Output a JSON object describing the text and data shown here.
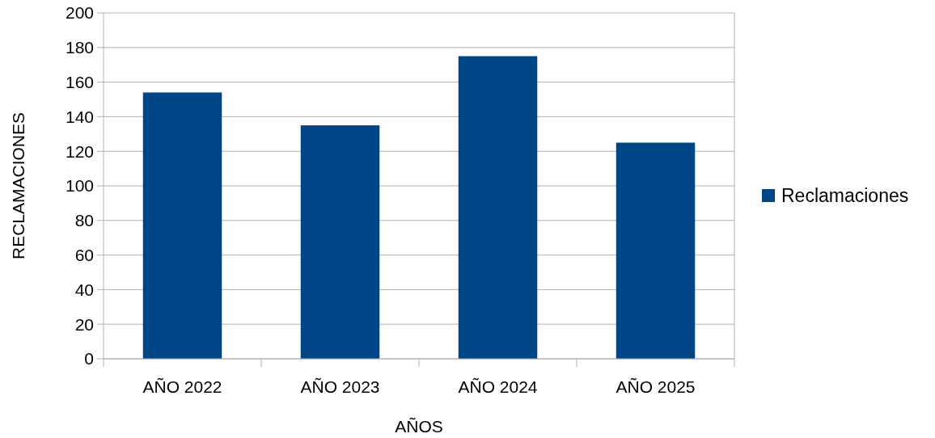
{
  "chart_data": {
    "type": "bar",
    "xlabel": "AÑOS",
    "ylabel": "RECLAMACIONES",
    "categories": [
      "AÑO 2022",
      "AÑO 2023",
      "AÑO 2024",
      "AÑO 2025"
    ],
    "series": [
      {
        "name": "Reclamaciones",
        "color": "#004586",
        "values": [
          154,
          135,
          175,
          125
        ]
      }
    ],
    "ylim": [
      0,
      200
    ],
    "yticks": [
      0,
      20,
      40,
      60,
      80,
      100,
      120,
      140,
      160,
      180,
      200
    ],
    "grid": "y",
    "legend": "right"
  }
}
